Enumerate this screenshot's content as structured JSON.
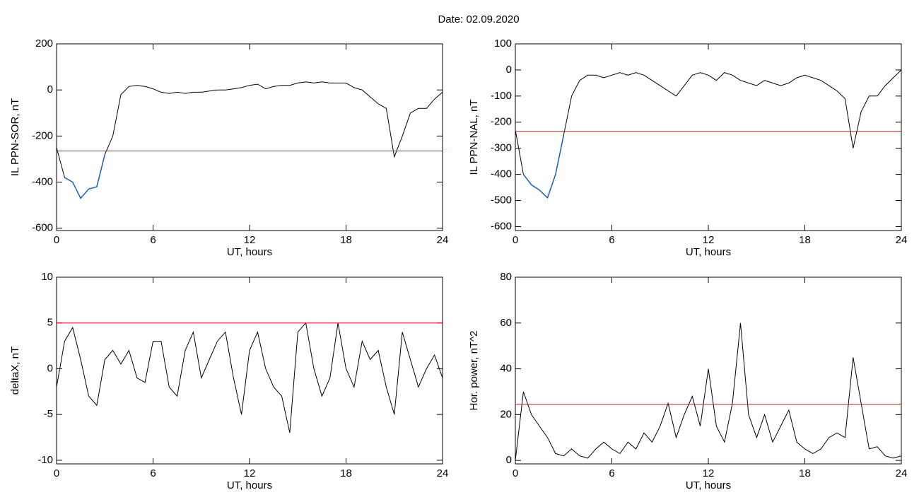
{
  "title": "Date:  02.09.2020",
  "chart_data": [
    {
      "type": "line",
      "ylabel": "IL PPN-SOR, nT",
      "xlabel": "UT, hours",
      "xlim": [
        0,
        24
      ],
      "xticks": [
        0,
        6,
        12,
        18,
        24
      ],
      "ylim": [
        -610,
        200
      ],
      "yticks": [
        200,
        0,
        -200,
        -400,
        -600
      ],
      "threshold": -265,
      "threshold_color": "#ff0000",
      "highlight_color": "#1f5fbf",
      "x": [
        0,
        0.5,
        1,
        1.5,
        2,
        2.5,
        3,
        3.5,
        4,
        4.5,
        5,
        5.5,
        6,
        6.5,
        7,
        7.5,
        8,
        8.5,
        9,
        9.5,
        10,
        10.5,
        11,
        11.5,
        12,
        12.5,
        13,
        13.5,
        14,
        14.5,
        15,
        15.5,
        16,
        16.5,
        17,
        17.5,
        18,
        18.5,
        19,
        19.5,
        20,
        20.5,
        21,
        21.5,
        22,
        22.5,
        23,
        23.5,
        24
      ],
      "series": [
        {
          "color": "#000000",
          "values": [
            -250,
            -380,
            -400,
            -470,
            -430,
            -420,
            -280,
            -200,
            -20,
            15,
            20,
            15,
            5,
            -10,
            -15,
            -10,
            -15,
            -10,
            -10,
            -5,
            0,
            0,
            5,
            10,
            20,
            25,
            5,
            15,
            20,
            20,
            30,
            35,
            30,
            35,
            30,
            30,
            30,
            10,
            0,
            -30,
            -60,
            -80,
            -290,
            -200,
            -100,
            -80,
            -80,
            -40,
            -10
          ]
        }
      ]
    },
    {
      "type": "line",
      "ylabel": "IL PPN-NAL, nT",
      "xlabel": "UT, hours",
      "xlim": [
        0,
        24
      ],
      "xticks": [
        0,
        6,
        12,
        18,
        24
      ],
      "ylim": [
        -615,
        100
      ],
      "yticks": [
        100,
        0,
        -100,
        -200,
        -300,
        -400,
        -500,
        -600
      ],
      "threshold": -235,
      "threshold_color": "#ff0000",
      "highlight_color": "#1f5fbf",
      "x": [
        0,
        0.5,
        1,
        1.5,
        2,
        2.5,
        3,
        3.5,
        4,
        4.5,
        5,
        5.5,
        6,
        6.5,
        7,
        7.5,
        8,
        8.5,
        9,
        9.5,
        10,
        10.5,
        11,
        11.5,
        12,
        12.5,
        13,
        13.5,
        14,
        14.5,
        15,
        15.5,
        16,
        16.5,
        17,
        17.5,
        18,
        18.5,
        19,
        19.5,
        20,
        20.5,
        21,
        21.5,
        22,
        22.5,
        23,
        23.5,
        24
      ],
      "series": [
        {
          "color": "#000000",
          "values": [
            -230,
            -400,
            -440,
            -460,
            -490,
            -400,
            -250,
            -100,
            -40,
            -20,
            -20,
            -30,
            -20,
            -10,
            -20,
            -10,
            -20,
            -40,
            -60,
            -80,
            -100,
            -60,
            -20,
            -10,
            -20,
            -40,
            -10,
            -20,
            -40,
            -50,
            -60,
            -40,
            -50,
            -60,
            -50,
            -30,
            -20,
            -30,
            -40,
            -60,
            -80,
            -110,
            -300,
            -160,
            -100,
            -100,
            -60,
            -30,
            0
          ]
        }
      ]
    },
    {
      "type": "line",
      "ylabel": "deltaX, nT",
      "xlabel": "UT, hours",
      "xlim": [
        0,
        24
      ],
      "xticks": [
        0,
        6,
        12,
        18,
        24
      ],
      "ylim": [
        -10.4,
        10
      ],
      "yticks": [
        10,
        5,
        0,
        -5,
        -10
      ],
      "threshold": 5,
      "threshold_color": "#ff0000",
      "x": [
        0,
        0.5,
        1,
        1.5,
        2,
        2.5,
        3,
        3.5,
        4,
        4.5,
        5,
        5.5,
        6,
        6.5,
        7,
        7.5,
        8,
        8.5,
        9,
        9.5,
        10,
        10.5,
        11,
        11.5,
        12,
        12.5,
        13,
        13.5,
        14,
        14.5,
        15,
        15.5,
        16,
        16.5,
        17,
        17.5,
        18,
        18.5,
        19,
        19.5,
        20,
        20.5,
        21,
        21.5,
        22,
        22.5,
        23,
        23.5,
        24
      ],
      "series": [
        {
          "color": "#000000",
          "values": [
            -2,
            3,
            4.5,
            1,
            -3,
            -4,
            1,
            2,
            0.5,
            2,
            -1,
            -1.5,
            3,
            3,
            -2,
            -3,
            2,
            4,
            -1,
            1,
            3,
            4,
            -1,
            -5,
            2,
            4,
            0,
            -2,
            -3,
            -7,
            4,
            5,
            0,
            -3,
            -1,
            5,
            0,
            -2,
            3,
            1,
            2,
            -2,
            -5,
            4,
            1,
            -2,
            0,
            1.5,
            -1
          ]
        }
      ]
    },
    {
      "type": "line",
      "ylabel": "Hor. power, nT^2",
      "xlabel": "UT, hours",
      "xlim": [
        0,
        24
      ],
      "xticks": [
        0,
        6,
        12,
        18,
        24
      ],
      "ylim": [
        -1.5,
        80
      ],
      "yticks": [
        80,
        60,
        40,
        20,
        0
      ],
      "threshold": 24.5,
      "threshold_color": "#ff0000",
      "x": [
        0,
        0.5,
        1,
        1.5,
        2,
        2.5,
        3,
        3.5,
        4,
        4.5,
        5,
        5.5,
        6,
        6.5,
        7,
        7.5,
        8,
        8.5,
        9,
        9.5,
        10,
        10.5,
        11,
        11.5,
        12,
        12.5,
        13,
        13.5,
        14,
        14.5,
        15,
        15.5,
        16,
        16.5,
        17,
        17.5,
        18,
        18.5,
        19,
        19.5,
        20,
        20.5,
        21,
        21.5,
        22,
        22.5,
        23,
        23.5,
        24
      ],
      "series": [
        {
          "color": "#000000",
          "values": [
            0,
            30,
            20,
            15,
            10,
            3,
            2,
            5,
            2,
            1,
            5,
            8,
            5,
            3,
            8,
            5,
            12,
            8,
            15,
            25,
            10,
            20,
            28,
            15,
            40,
            15,
            8,
            25,
            60,
            20,
            10,
            20,
            8,
            15,
            22,
            8,
            5,
            3,
            5,
            10,
            12,
            10,
            45,
            25,
            5,
            6,
            2,
            1,
            2
          ]
        }
      ]
    }
  ]
}
